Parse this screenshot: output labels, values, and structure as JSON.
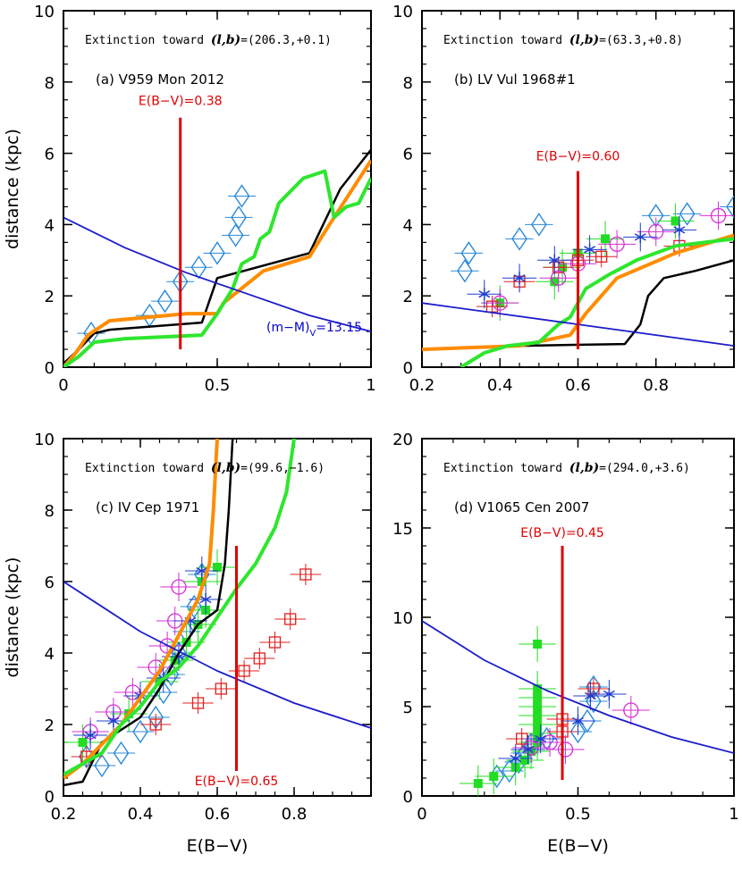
{
  "colors": {
    "black": "#000000",
    "orange": "#ff8c00",
    "green": "#2ee62e",
    "red": "#e00000",
    "blue": "#1c1ccc",
    "cyan": "#2a8ad8",
    "star": "#1f3fd0",
    "magenta": "#d62ed6",
    "sqred": "#e02020",
    "fillgreen": "#22dd22"
  },
  "chart_data": [
    {
      "id": "a",
      "type": "scatter",
      "xlim": [
        0,
        1
      ],
      "ylim": [
        0,
        10
      ],
      "xticks": [
        "0",
        "0.5",
        "1"
      ],
      "yticks": [
        "0",
        "2",
        "4",
        "6",
        "8",
        "10"
      ],
      "ylabel": "distance (kpc)",
      "xlabel": "",
      "title_prefix": "Extinction toward",
      "lb_symbol": "(l,b)",
      "lb_value": "=(206.3,+0.1)",
      "object": "(a) V959 Mon 2012",
      "ebv_label": "E(B−V)=0.38",
      "ebv": 0.38,
      "ebv_line": [
        0.5,
        7
      ],
      "mod_label": "(m−M)",
      "mod_sub": "V",
      "mod_val": "=13.15",
      "series": [
        {
          "name": "black",
          "color": "black",
          "points": [
            [
              0,
              0.1
            ],
            [
              0.05,
              0.5
            ],
            [
              0.1,
              0.95
            ],
            [
              0.15,
              1.05
            ],
            [
              0.45,
              1.25
            ],
            [
              0.5,
              2.5
            ],
            [
              0.8,
              3.2
            ],
            [
              0.9,
              5.0
            ],
            [
              1.0,
              6.1
            ]
          ]
        },
        {
          "name": "orange",
          "color": "orange",
          "points": [
            [
              0,
              0
            ],
            [
              0.04,
              0.4
            ],
            [
              0.08,
              0.9
            ],
            [
              0.15,
              1.3
            ],
            [
              0.4,
              1.5
            ],
            [
              0.5,
              1.5
            ],
            [
              0.52,
              1.8
            ],
            [
              0.65,
              2.7
            ],
            [
              0.8,
              3.1
            ],
            [
              0.85,
              3.8
            ],
            [
              1.0,
              5.8
            ]
          ]
        },
        {
          "name": "green",
          "color": "green",
          "points": [
            [
              0,
              0
            ],
            [
              0.05,
              0.3
            ],
            [
              0.1,
              0.7
            ],
            [
              0.2,
              0.8
            ],
            [
              0.45,
              0.9
            ],
            [
              0.5,
              1.5
            ],
            [
              0.55,
              2.2
            ],
            [
              0.58,
              2.9
            ],
            [
              0.62,
              3.1
            ],
            [
              0.64,
              3.6
            ],
            [
              0.67,
              3.8
            ],
            [
              0.7,
              4.6
            ],
            [
              0.78,
              5.3
            ],
            [
              0.85,
              5.5
            ],
            [
              0.88,
              4.2
            ],
            [
              0.92,
              4.5
            ],
            [
              0.96,
              4.6
            ],
            [
              1.0,
              5.3
            ]
          ]
        },
        {
          "name": "blue-mod",
          "color": "blue",
          "points": [
            [
              0,
              4.2
            ],
            [
              0.2,
              3.35
            ],
            [
              0.4,
              2.65
            ],
            [
              0.6,
              2.05
            ],
            [
              0.8,
              1.45
            ],
            [
              1.0,
              1.0
            ]
          ]
        }
      ],
      "cyan_diamonds": [
        [
          0.09,
          0.95
        ],
        [
          0.28,
          1.45
        ],
        [
          0.33,
          1.85
        ],
        [
          0.38,
          2.4
        ],
        [
          0.44,
          2.8
        ],
        [
          0.5,
          3.2
        ],
        [
          0.56,
          3.7
        ],
        [
          0.57,
          4.2
        ],
        [
          0.58,
          4.8
        ]
      ]
    },
    {
      "id": "b",
      "type": "scatter",
      "xlim": [
        0.2,
        1
      ],
      "ylim": [
        0,
        10
      ],
      "xticks": [
        "0.2",
        "0.4",
        "0.6",
        "0.8"
      ],
      "yticks": [
        "0",
        "2",
        "4",
        "6",
        "8",
        "10"
      ],
      "ylabel": "",
      "xlabel": "",
      "title_prefix": "Extinction toward",
      "lb_symbol": "(l,b)",
      "lb_value": "=(63.3,+0.8)",
      "object": "(b) LV Vul 1968#1",
      "ebv_label": "E(B−V)=0.60",
      "ebv": 0.6,
      "ebv_line": [
        0.5,
        5.5
      ],
      "series": [
        {
          "name": "black",
          "color": "black",
          "points": [
            [
              0.2,
              0.5
            ],
            [
              0.45,
              0.6
            ],
            [
              0.72,
              0.65
            ],
            [
              0.76,
              1.2
            ],
            [
              0.78,
              2.0
            ],
            [
              0.82,
              2.5
            ],
            [
              0.9,
              2.7
            ],
            [
              1.0,
              3.0
            ]
          ]
        },
        {
          "name": "orange",
          "color": "orange",
          "points": [
            [
              0.2,
              0.5
            ],
            [
              0.45,
              0.6
            ],
            [
              0.58,
              0.9
            ],
            [
              0.62,
              1.5
            ],
            [
              0.7,
              2.5
            ],
            [
              0.85,
              3.2
            ],
            [
              1.0,
              3.7
            ]
          ]
        },
        {
          "name": "green",
          "color": "green",
          "points": [
            [
              0.3,
              0
            ],
            [
              0.36,
              0.4
            ],
            [
              0.42,
              0.6
            ],
            [
              0.5,
              0.7
            ],
            [
              0.55,
              1.2
            ],
            [
              0.58,
              1.4
            ],
            [
              0.62,
              2.2
            ],
            [
              0.68,
              2.6
            ],
            [
              0.75,
              3.0
            ],
            [
              0.85,
              3.4
            ],
            [
              1.0,
              3.6
            ]
          ]
        },
        {
          "name": "blue-mod",
          "color": "blue",
          "points": [
            [
              0.2,
              1.8
            ],
            [
              0.4,
              1.5
            ],
            [
              0.6,
              1.2
            ],
            [
              0.8,
              0.9
            ],
            [
              1.0,
              0.6
            ]
          ]
        }
      ],
      "cyan_diamonds": [
        [
          0.31,
          2.7
        ],
        [
          0.32,
          3.2
        ],
        [
          0.45,
          3.6
        ],
        [
          0.5,
          4.0
        ],
        [
          0.8,
          4.25
        ],
        [
          0.88,
          4.3
        ],
        [
          1.0,
          4.5
        ]
      ],
      "stars": [
        [
          0.36,
          2.05
        ],
        [
          0.45,
          2.5
        ],
        [
          0.54,
          3.0
        ],
        [
          0.63,
          3.3
        ],
        [
          0.76,
          3.65
        ],
        [
          0.86,
          3.85
        ]
      ],
      "magenta_circles": [
        [
          0.4,
          1.8
        ],
        [
          0.55,
          2.5
        ],
        [
          0.6,
          2.9
        ],
        [
          0.7,
          3.45
        ],
        [
          0.8,
          3.8
        ],
        [
          0.96,
          4.25
        ]
      ],
      "red_squares": [
        [
          0.38,
          1.7
        ],
        [
          0.45,
          2.4
        ],
        [
          0.55,
          2.8
        ],
        [
          0.6,
          3.0
        ],
        [
          0.66,
          3.1
        ],
        [
          0.86,
          3.4
        ]
      ],
      "green_squares": [
        [
          0.4,
          1.8
        ],
        [
          0.54,
          2.4
        ],
        [
          0.56,
          2.8
        ],
        [
          0.6,
          3.2
        ],
        [
          0.67,
          3.6
        ],
        [
          0.85,
          4.1
        ]
      ]
    },
    {
      "id": "c",
      "type": "scatter",
      "xlim": [
        0.2,
        1
      ],
      "ylim": [
        0,
        10
      ],
      "xticks": [
        "0.2",
        "0.4",
        "0.6",
        "0.8"
      ],
      "yticks": [
        "0",
        "2",
        "4",
        "6",
        "8",
        "10"
      ],
      "ylabel": "distance (kpc)",
      "xlabel": "E(B−V)",
      "title_prefix": "Extinction toward",
      "lb_symbol": "(l,b)",
      "lb_value": "=(99.6,−1.6)",
      "object": "(c) IV Cep 1971",
      "ebv_label": "E(B−V)=0.65",
      "ebv": 0.65,
      "ebv_line": [
        0.7,
        7
      ],
      "series": [
        {
          "name": "black",
          "color": "black",
          "points": [
            [
              0.2,
              0.3
            ],
            [
              0.25,
              0.4
            ],
            [
              0.3,
              1.5
            ],
            [
              0.4,
              2.2
            ],
            [
              0.45,
              3.0
            ],
            [
              0.5,
              4.0
            ],
            [
              0.55,
              4.8
            ],
            [
              0.6,
              5.2
            ],
            [
              0.62,
              6.5
            ],
            [
              0.63,
              8.0
            ],
            [
              0.64,
              10.0
            ]
          ]
        },
        {
          "name": "orange",
          "color": "orange",
          "points": [
            [
              0.2,
              0.5
            ],
            [
              0.25,
              0.9
            ],
            [
              0.35,
              2.0
            ],
            [
              0.45,
              3.5
            ],
            [
              0.5,
              4.5
            ],
            [
              0.55,
              5.5
            ],
            [
              0.58,
              6.5
            ],
            [
              0.59,
              8.0
            ],
            [
              0.6,
              10.0
            ]
          ]
        },
        {
          "name": "green",
          "color": "green",
          "points": [
            [
              0.2,
              0.6
            ],
            [
              0.25,
              0.9
            ],
            [
              0.3,
              1.2
            ],
            [
              0.35,
              2.0
            ],
            [
              0.4,
              2.5
            ],
            [
              0.45,
              3.2
            ],
            [
              0.5,
              3.6
            ],
            [
              0.55,
              4.2
            ],
            [
              0.6,
              5.0
            ],
            [
              0.65,
              5.8
            ],
            [
              0.7,
              6.5
            ],
            [
              0.75,
              7.5
            ],
            [
              0.78,
              8.5
            ],
            [
              0.8,
              10.0
            ]
          ]
        },
        {
          "name": "blue-mod",
          "color": "blue",
          "points": [
            [
              0.2,
              6.0
            ],
            [
              0.4,
              4.6
            ],
            [
              0.6,
              3.5
            ],
            [
              0.8,
              2.6
            ],
            [
              1.0,
              1.9
            ]
          ]
        }
      ],
      "cyan_diamonds": [
        [
          0.26,
          1.1
        ],
        [
          0.3,
          0.85
        ],
        [
          0.35,
          1.2
        ],
        [
          0.4,
          1.8
        ],
        [
          0.44,
          2.2
        ],
        [
          0.46,
          2.9
        ],
        [
          0.48,
          3.4
        ],
        [
          0.5,
          4.0
        ],
        [
          0.52,
          4.6
        ],
        [
          0.54,
          5.3
        ],
        [
          0.56,
          6.2
        ]
      ],
      "stars": [
        [
          0.27,
          1.7
        ],
        [
          0.33,
          2.1
        ],
        [
          0.4,
          2.8
        ],
        [
          0.46,
          3.3
        ],
        [
          0.5,
          3.9
        ],
        [
          0.53,
          4.9
        ],
        [
          0.57,
          5.5
        ],
        [
          0.56,
          6.3
        ]
      ],
      "magenta_circles": [
        [
          0.27,
          1.8
        ],
        [
          0.33,
          2.35
        ],
        [
          0.38,
          2.9
        ],
        [
          0.44,
          3.6
        ],
        [
          0.47,
          4.2
        ],
        [
          0.49,
          4.9
        ],
        [
          0.5,
          5.85
        ]
      ],
      "red_squares": [
        [
          0.26,
          1.1
        ],
        [
          0.44,
          2.0
        ],
        [
          0.55,
          2.6
        ],
        [
          0.61,
          3.0
        ],
        [
          0.67,
          3.5
        ],
        [
          0.71,
          3.85
        ],
        [
          0.75,
          4.3
        ],
        [
          0.79,
          4.95
        ],
        [
          0.83,
          6.2
        ]
      ],
      "green_squares": [
        [
          0.25,
          1.5
        ],
        [
          0.37,
          2.3
        ],
        [
          0.45,
          3.2
        ],
        [
          0.49,
          3.8
        ],
        [
          0.52,
          4.3
        ],
        [
          0.55,
          4.8
        ],
        [
          0.57,
          5.2
        ],
        [
          0.6,
          6.4
        ],
        [
          0.56,
          6.0
        ]
      ]
    },
    {
      "id": "d",
      "type": "scatter",
      "xlim": [
        0,
        1
      ],
      "ylim": [
        0,
        20
      ],
      "xticks": [
        "0",
        "0.5",
        "1"
      ],
      "yticks": [
        "0",
        "5",
        "10",
        "15",
        "20"
      ],
      "ylabel": "",
      "xlabel": "E(B−V)",
      "title_prefix": "Extinction toward",
      "lb_symbol": "(l,b)",
      "lb_value": "=(294.0,+3.6)",
      "object": "(d) V1065 Cen 2007",
      "ebv_label": "E(B−V)=0.45",
      "ebv": 0.45,
      "ebv_line": [
        0.9,
        14
      ],
      "series": [
        {
          "name": "blue-mod",
          "color": "blue",
          "points": [
            [
              0,
              9.8
            ],
            [
              0.2,
              7.6
            ],
            [
              0.4,
              5.9
            ],
            [
              0.6,
              4.5
            ],
            [
              0.8,
              3.3
            ],
            [
              1.0,
              2.4
            ]
          ]
        }
      ],
      "cyan_diamonds": [
        [
          0.24,
          1.1
        ],
        [
          0.28,
          1.4
        ],
        [
          0.31,
          1.9
        ],
        [
          0.33,
          2.4
        ],
        [
          0.35,
          2.9
        ],
        [
          0.4,
          3.2
        ],
        [
          0.5,
          3.6
        ],
        [
          0.53,
          4.2
        ],
        [
          0.55,
          5.3
        ],
        [
          0.55,
          6.1
        ]
      ],
      "stars": [
        [
          0.3,
          2.1
        ],
        [
          0.34,
          2.6
        ],
        [
          0.38,
          3.2
        ],
        [
          0.5,
          4.2
        ],
        [
          0.54,
          5.6
        ],
        [
          0.6,
          5.7
        ]
      ],
      "magenta_circles": [
        [
          0.35,
          2.7
        ],
        [
          0.41,
          3.0
        ],
        [
          0.46,
          2.6
        ],
        [
          0.67,
          4.8
        ]
      ],
      "red_squares": [
        [
          0.32,
          3.2
        ],
        [
          0.45,
          3.6
        ],
        [
          0.45,
          4.3
        ],
        [
          0.55,
          6.0
        ]
      ],
      "green_squares": [
        [
          0.18,
          0.7
        ],
        [
          0.23,
          1.1
        ],
        [
          0.3,
          1.6
        ],
        [
          0.33,
          2.0
        ],
        [
          0.35,
          2.5
        ],
        [
          0.37,
          3.0
        ],
        [
          0.37,
          3.5
        ],
        [
          0.37,
          4.0
        ],
        [
          0.37,
          4.5
        ],
        [
          0.37,
          5.0
        ],
        [
          0.37,
          5.5
        ],
        [
          0.37,
          6.0
        ],
        [
          0.37,
          8.5
        ]
      ]
    }
  ]
}
